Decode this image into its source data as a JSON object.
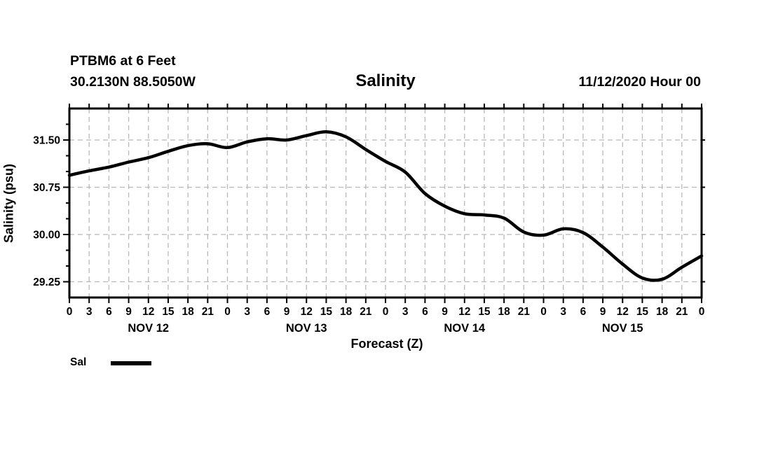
{
  "header": {
    "station_line1": "PTBM6 at 6 Feet",
    "station_line2": "30.2130N 88.5050W",
    "title": "Salinity",
    "run_time": "11/12/2020 Hour 00"
  },
  "legend": {
    "label": "Sal"
  },
  "colors": {
    "line": "#000000",
    "grid": "#b8b8b8",
    "text": "#000000",
    "background": "#ffffff"
  },
  "chart_data": {
    "type": "line",
    "title": "Salinity",
    "station": "PTBM6 at 6 Feet",
    "location": "30.2130N 88.5050W",
    "run_label": "11/12/2020 Hour 00",
    "xlabel": "Forecast (Z)",
    "ylabel": "Salinity (psu)",
    "ylim": [
      29.0,
      32.0
    ],
    "y_major_ticks": [
      31.5,
      30.75,
      30.0,
      29.25
    ],
    "y_tick_labels": [
      "31.50",
      "30.75",
      "30.00",
      "29.25"
    ],
    "y_minor_step": 0.25,
    "x_total_hours": 96,
    "x_tick_step_hours": 3,
    "x_hour_label_modulo": 24,
    "grid": true,
    "grid_style": "dashed",
    "legend_position": "bottom-left",
    "days": [
      {
        "label": "NOV 12",
        "center_hour": 12
      },
      {
        "label": "NOV 13",
        "center_hour": 36
      },
      {
        "label": "NOV 14",
        "center_hour": 60
      },
      {
        "label": "NOV 15",
        "center_hour": 84
      }
    ],
    "series": [
      {
        "name": "Sal",
        "color": "#000000",
        "hours": [
          0,
          3,
          6,
          9,
          12,
          15,
          18,
          21,
          24,
          27,
          30,
          33,
          36,
          39,
          42,
          45,
          48,
          51,
          54,
          57,
          60,
          63,
          66,
          69,
          72,
          75,
          78,
          81,
          84,
          87,
          90,
          93,
          96
        ],
        "values": [
          30.94,
          31.01,
          31.07,
          31.15,
          31.22,
          31.32,
          31.41,
          31.44,
          31.38,
          31.47,
          31.52,
          31.5,
          31.57,
          31.63,
          31.55,
          31.35,
          31.16,
          30.99,
          30.65,
          30.45,
          30.33,
          30.31,
          30.26,
          30.04,
          29.99,
          30.09,
          30.03,
          29.8,
          29.53,
          29.31,
          29.29,
          29.48,
          29.66
        ]
      }
    ]
  }
}
